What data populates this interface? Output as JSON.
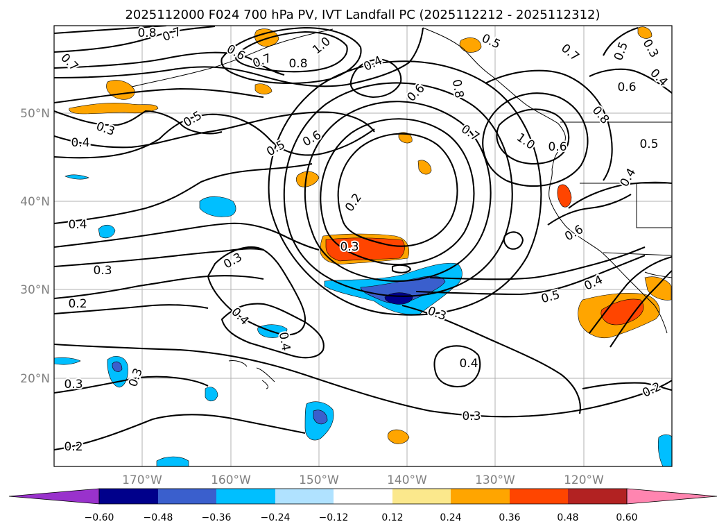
{
  "title": "2025112000 F024 700 hPa PV, IVT Landfall PC (2025112212 - 2025112312)",
  "map": {
    "lon_range": [
      -180,
      -110
    ],
    "lat_range": [
      10,
      60
    ],
    "lon_ticks": [
      "170°W",
      "160°W",
      "150°W",
      "140°W",
      "130°W",
      "120°W"
    ],
    "lat_ticks": [
      "50°N",
      "40°N",
      "30°N",
      "20°N"
    ],
    "grid": true,
    "projection": "PlateCarree"
  },
  "colorbar": {
    "ticks": [
      "−0.60",
      "−0.48",
      "−0.36",
      "−0.24",
      "−0.12",
      "0.12",
      "0.24",
      "0.36",
      "0.48",
      "0.60"
    ],
    "colors": [
      "#9932cc",
      "#00008b",
      "#3a5fcd",
      "#00bfff",
      "#b0e2ff",
      "#ffffff",
      "#fbe88c",
      "#ffa500",
      "#ff4500",
      "#b22222",
      "#ff85b0"
    ],
    "extend": "both"
  },
  "contour_labels": [
    {
      "text": "0.8",
      "rot": 0
    },
    {
      "text": "0.7",
      "rot": -20
    },
    {
      "text": "0.7",
      "rot": 45
    },
    {
      "text": "0.6",
      "rot": 30
    },
    {
      "text": "0.7",
      "rot": -20
    },
    {
      "text": "0.8",
      "rot": 0
    },
    {
      "text": "1.0",
      "rot": -40
    },
    {
      "text": "0.4",
      "rot": -25
    },
    {
      "text": "0.5",
      "rot": 25
    },
    {
      "text": "0.6",
      "rot": -45
    },
    {
      "text": "0.8",
      "rot": 80
    },
    {
      "text": "0.7",
      "rot": 40
    },
    {
      "text": "0.5",
      "rot": -70
    },
    {
      "text": "0.3",
      "rot": 60
    },
    {
      "text": "0.4",
      "rot": 45
    },
    {
      "text": "0.6",
      "rot": 0
    },
    {
      "text": "0.5",
      "rot": -30
    },
    {
      "text": "0.3",
      "rot": 20
    },
    {
      "text": "0.4",
      "rot": 0
    },
    {
      "text": "0.5",
      "rot": -30
    },
    {
      "text": "0.6",
      "rot": -30
    },
    {
      "text": "0.7",
      "rot": 35
    },
    {
      "text": "1.0",
      "rot": 35
    },
    {
      "text": "0.6",
      "rot": 0
    },
    {
      "text": "0.8",
      "rot": 50
    },
    {
      "text": "0.5",
      "rot": 0
    },
    {
      "text": "0.4",
      "rot": -60
    },
    {
      "text": "0.2",
      "rot": -55
    },
    {
      "text": "0.4",
      "rot": 0
    },
    {
      "text": "0.3",
      "rot": 0
    },
    {
      "text": "0.3",
      "rot": -30
    },
    {
      "text": "0.3",
      "rot": 0
    },
    {
      "text": "0.2",
      "rot": 0
    },
    {
      "text": "0.4",
      "rot": 45
    },
    {
      "text": "0.4",
      "rot": 80
    },
    {
      "text": "0.3",
      "rot": 20
    },
    {
      "text": "0.5",
      "rot": -15
    },
    {
      "text": "0.4",
      "rot": -25
    },
    {
      "text": "0.6",
      "rot": -30
    },
    {
      "text": "0.4",
      "rot": 0
    },
    {
      "text": "0.3",
      "rot": 0
    },
    {
      "text": "0.3",
      "rot": 0
    },
    {
      "text": "0.3",
      "rot": -70
    },
    {
      "text": "0.2",
      "rot": 0
    },
    {
      "text": "0.2",
      "rot": -25
    }
  ]
}
